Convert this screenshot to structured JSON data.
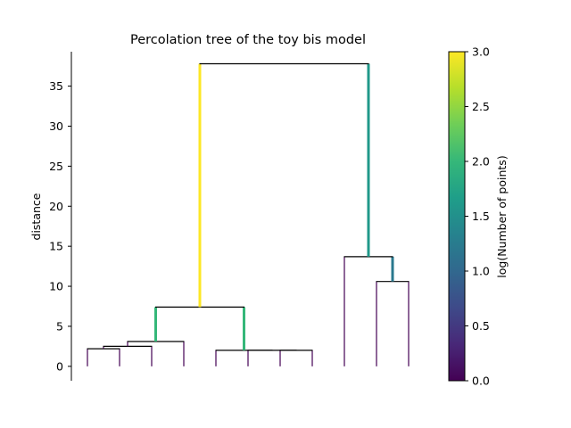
{
  "chart_data": {
    "type": "dendrogram",
    "title": "Percolation tree of the toy bis model",
    "xlabel": "",
    "ylabel": "distance",
    "ylim": [
      -1.8,
      39.3
    ],
    "yticks": [
      0,
      5,
      10,
      15,
      20,
      25,
      30,
      35
    ],
    "leaves": 11,
    "links": [
      {
        "x1": 1,
        "x2": 2,
        "y": 2.2,
        "child_y": [
          0,
          0
        ],
        "color": "#000000",
        "cv": [
          0.0,
          0.0
        ]
      },
      {
        "x1": 1.5,
        "x2": 3,
        "y": 2.5,
        "child_y": [
          2.2,
          0
        ],
        "color": "#000000",
        "cv": [
          0.0,
          0.0
        ]
      },
      {
        "x1": 2.25,
        "x2": 4,
        "y": 3.1,
        "child_y": [
          2.5,
          0
        ],
        "color": "#000000",
        "cv": [
          0.0,
          0.0
        ]
      },
      {
        "x1": 7,
        "x2": 8,
        "y": 2.0,
        "child_y": [
          0,
          0
        ],
        "color": "#000000",
        "cv": [
          0.0,
          0.0
        ]
      },
      {
        "x1": 6,
        "x2": 7.5,
        "y": 2.0,
        "child_y": [
          0,
          2.0
        ],
        "color": "#000000",
        "cv": [
          0.0,
          0.0
        ]
      },
      {
        "x1": 5,
        "x2": 6.75,
        "y": 2.0,
        "child_y": [
          0,
          2.0
        ],
        "color": "#000000",
        "cv": [
          0.0,
          0.0
        ]
      },
      {
        "x1": 3.125,
        "x2": 5.875,
        "y": 7.4,
        "child_y": [
          3.1,
          2.0
        ],
        "color": "#000000",
        "cv": [
          2.0,
          2.0
        ]
      },
      {
        "x1": 10,
        "x2": 11,
        "y": 10.6,
        "child_y": [
          0,
          0
        ],
        "color": "#000000",
        "cv": [
          0.0,
          0.0
        ]
      },
      {
        "x1": 9,
        "x2": 10.5,
        "y": 13.7,
        "child_y": [
          0,
          10.6
        ],
        "color": "#000000",
        "cv": [
          0.0,
          1.2
        ]
      },
      {
        "x1": 4.5,
        "x2": 9.75,
        "y": 37.8,
        "child_y": [
          7.4,
          13.7
        ],
        "color": "#000000",
        "cv": [
          3.0,
          1.6
        ]
      }
    ],
    "colorbar": {
      "label": "log(Number of points)",
      "range": [
        0.0,
        3.0
      ],
      "ticks": [
        "0.0",
        "0.5",
        "1.0",
        "1.5",
        "2.0",
        "2.5",
        "3.0"
      ],
      "colormap": [
        "#440154",
        "#482878",
        "#3e4a89",
        "#31688e",
        "#26828e",
        "#1f9e89",
        "#35b779",
        "#6ece58",
        "#b5de2b",
        "#fde725"
      ]
    }
  }
}
